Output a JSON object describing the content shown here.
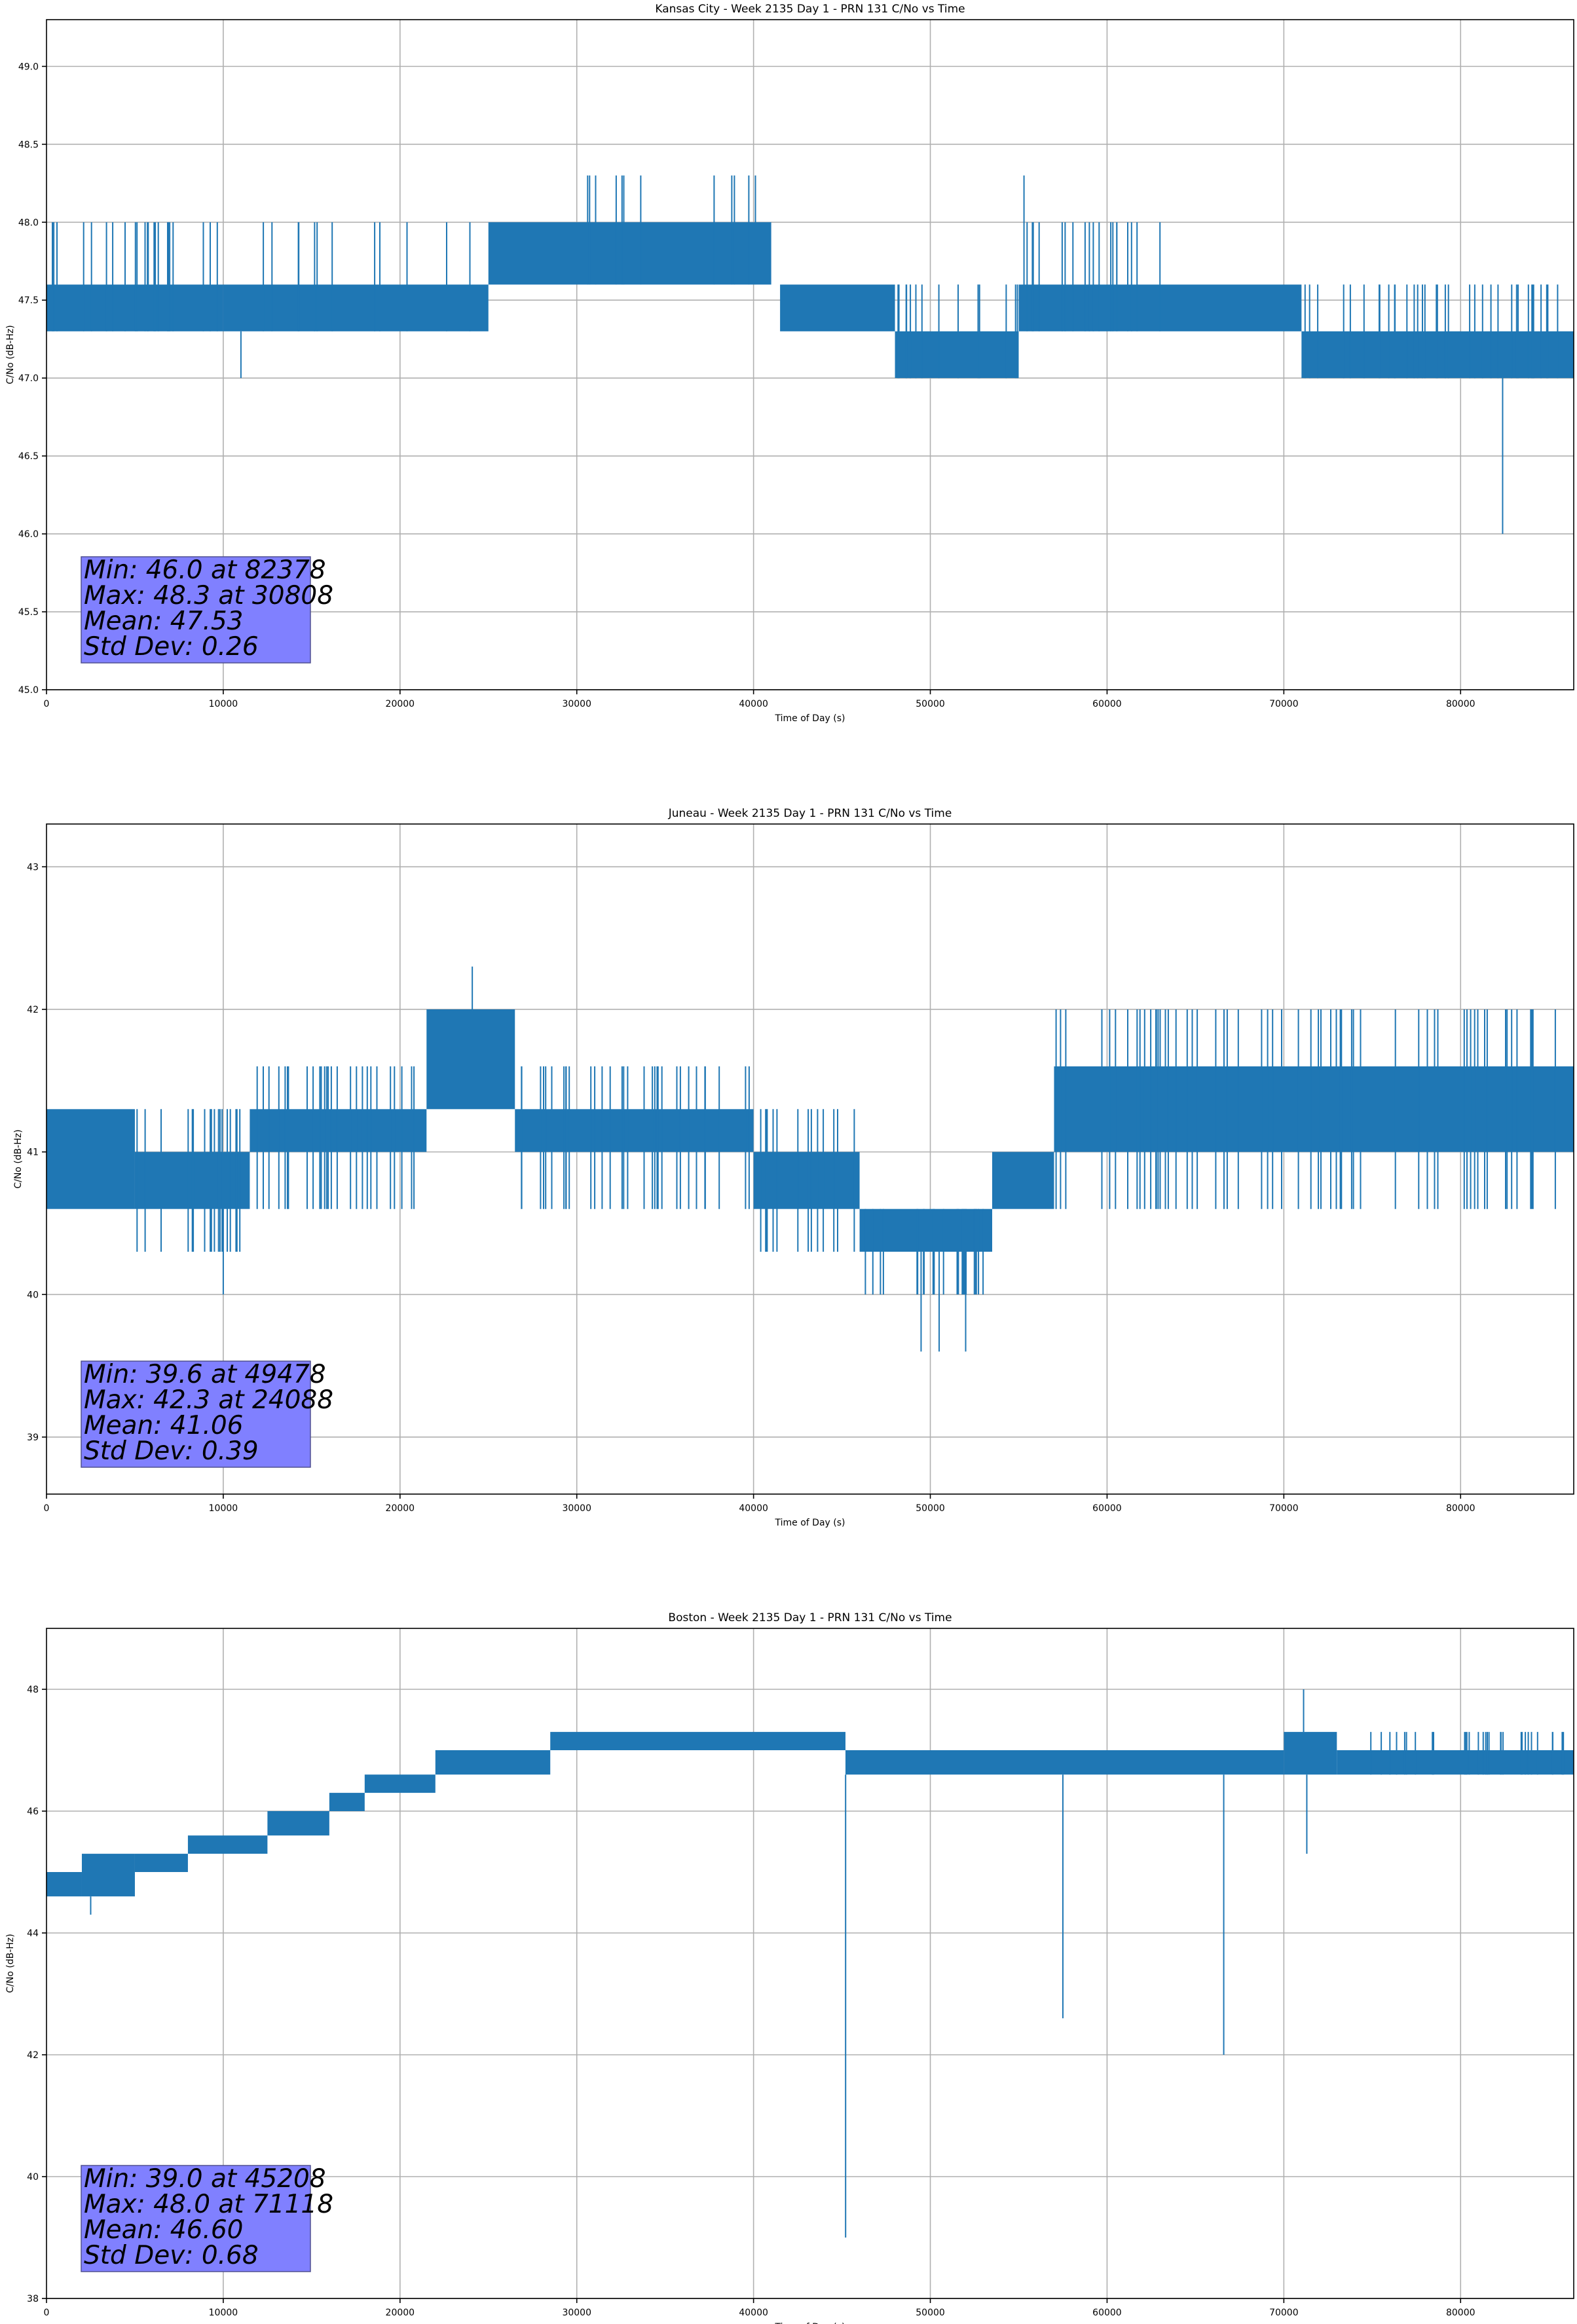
{
  "chart_data": [
    {
      "type": "line",
      "title": "Kansas City - Week 2135 Day 1 - PRN 131 C/No vs Time",
      "xlabel": "Time of Day (s)",
      "ylabel": "C/No (dB-Hz)",
      "xlim": [
        0,
        86400
      ],
      "ylim": [
        45.0,
        49.3
      ],
      "xticks": [
        0,
        10000,
        20000,
        30000,
        40000,
        50000,
        60000,
        70000,
        80000
      ],
      "yticks": [
        45.0,
        45.5,
        46.0,
        46.5,
        47.0,
        47.5,
        48.0,
        48.5,
        49.0
      ],
      "ytick_labels": [
        "45.0",
        "45.5",
        "46.0",
        "46.5",
        "47.0",
        "47.5",
        "48.0",
        "48.5",
        "49.0"
      ],
      "grid": true,
      "series_color": "#1f77b4",
      "series": [
        {
          "segments": [
            {
              "x0": 0,
              "x1": 10000,
              "lo": 47.3,
              "hi": 47.6,
              "dense": 1.0
            },
            {
              "x0": 0,
              "x1": 10000,
              "lo": 47.3,
              "hi": 48.0,
              "dense": 0.35
            },
            {
              "x0": 10000,
              "x1": 25000,
              "lo": 47.3,
              "hi": 47.6,
              "dense": 1.0
            },
            {
              "x0": 10000,
              "x1": 25000,
              "lo": 47.3,
              "hi": 48.0,
              "dense": 0.12
            },
            {
              "x0": 25000,
              "x1": 41000,
              "lo": 47.6,
              "hi": 48.0,
              "dense": 1.0
            },
            {
              "x0": 30500,
              "x1": 40500,
              "lo": 47.6,
              "hi": 48.3,
              "dense": 0.18
            },
            {
              "x0": 41500,
              "x1": 48000,
              "lo": 47.3,
              "hi": 47.6,
              "dense": 1.0
            },
            {
              "x0": 48000,
              "x1": 55000,
              "lo": 47.0,
              "hi": 47.3,
              "dense": 1.0
            },
            {
              "x0": 48000,
              "x1": 55000,
              "lo": 47.0,
              "hi": 47.6,
              "dense": 0.3
            },
            {
              "x0": 55000,
              "x1": 63000,
              "lo": 47.3,
              "hi": 47.6,
              "dense": 1.0
            },
            {
              "x0": 55000,
              "x1": 63000,
              "lo": 47.3,
              "hi": 48.0,
              "dense": 0.35
            },
            {
              "x0": 63000,
              "x1": 71000,
              "lo": 47.3,
              "hi": 47.6,
              "dense": 1.0
            },
            {
              "x0": 71000,
              "x1": 86400,
              "lo": 47.0,
              "hi": 47.3,
              "dense": 1.0
            },
            {
              "x0": 71000,
              "x1": 86400,
              "lo": 47.0,
              "hi": 47.6,
              "dense": 0.35
            }
          ],
          "spikes": [
            [
              11000,
              47.0
            ],
            [
              55300,
              48.3
            ],
            [
              82378,
              46.0
            ]
          ]
        }
      ],
      "stats_box": [
        "Min: 46.0 at 82378",
        "Max: 48.3 at 30808",
        "Mean: 47.53",
        "Std Dev: 0.26"
      ]
    },
    {
      "type": "line",
      "title": "Juneau - Week 2135 Day 1 - PRN 131 C/No vs Time",
      "xlabel": "Time of Day (s)",
      "ylabel": "C/No (dB-Hz)",
      "xlim": [
        0,
        86400
      ],
      "ylim": [
        38.6,
        43.3
      ],
      "xticks": [
        0,
        10000,
        20000,
        30000,
        40000,
        50000,
        60000,
        70000,
        80000
      ],
      "yticks": [
        39,
        40,
        41,
        42,
        43
      ],
      "ytick_labels": [
        "39",
        "40",
        "41",
        "42",
        "43"
      ],
      "grid": true,
      "series_color": "#1f77b4",
      "series": [
        {
          "segments": [
            {
              "x0": 0,
              "x1": 5000,
              "lo": 40.6,
              "hi": 41.3,
              "dense": 1.0
            },
            {
              "x0": 5000,
              "x1": 11500,
              "lo": 40.6,
              "hi": 41.0,
              "dense": 1.0
            },
            {
              "x0": 5000,
              "x1": 11500,
              "lo": 40.3,
              "hi": 41.3,
              "dense": 0.4
            },
            {
              "x0": 11500,
              "x1": 21500,
              "lo": 41.0,
              "hi": 41.3,
              "dense": 1.0
            },
            {
              "x0": 11500,
              "x1": 21500,
              "lo": 40.6,
              "hi": 41.6,
              "dense": 0.4
            },
            {
              "x0": 21500,
              "x1": 26500,
              "lo": 41.3,
              "hi": 42.0,
              "dense": 1.0
            },
            {
              "x0": 26500,
              "x1": 40000,
              "lo": 41.0,
              "hi": 41.3,
              "dense": 1.0
            },
            {
              "x0": 26500,
              "x1": 40000,
              "lo": 40.6,
              "hi": 41.6,
              "dense": 0.35
            },
            {
              "x0": 40000,
              "x1": 46000,
              "lo": 40.6,
              "hi": 41.0,
              "dense": 1.0
            },
            {
              "x0": 40000,
              "x1": 46000,
              "lo": 40.3,
              "hi": 41.3,
              "dense": 0.35
            },
            {
              "x0": 46000,
              "x1": 53500,
              "lo": 40.3,
              "hi": 40.6,
              "dense": 1.0
            },
            {
              "x0": 46000,
              "x1": 53500,
              "lo": 40.0,
              "hi": 40.6,
              "dense": 0.5
            },
            {
              "x0": 53500,
              "x1": 57000,
              "lo": 40.6,
              "hi": 41.0,
              "dense": 1.0
            },
            {
              "x0": 57000,
              "x1": 86400,
              "lo": 41.0,
              "hi": 41.6,
              "dense": 1.0
            },
            {
              "x0": 57000,
              "x1": 86400,
              "lo": 40.6,
              "hi": 42.0,
              "dense": 0.3
            }
          ],
          "spikes": [
            [
              10000,
              40.0
            ],
            [
              24088,
              42.3
            ],
            [
              49478,
              39.6
            ],
            [
              50500,
              39.6
            ],
            [
              52000,
              39.6
            ]
          ]
        }
      ],
      "stats_box": [
        "Min: 39.6 at 49478",
        "Max: 42.3 at 24088",
        "Mean: 41.06",
        "Std Dev: 0.39"
      ]
    },
    {
      "type": "line",
      "title": "Boston - Week 2135 Day 1 - PRN 131 C/No vs Time",
      "xlabel": "Time of Day (s)",
      "ylabel": "C/No (dB-Hz)",
      "xlim": [
        0,
        86400
      ],
      "ylim": [
        38,
        49
      ],
      "xticks": [
        0,
        10000,
        20000,
        30000,
        40000,
        50000,
        60000,
        70000,
        80000
      ],
      "yticks": [
        38,
        40,
        42,
        44,
        46,
        48
      ],
      "ytick_labels": [
        "38",
        "40",
        "42",
        "44",
        "46",
        "48"
      ],
      "grid": true,
      "series_color": "#1f77b4",
      "series": [
        {
          "segments": [
            {
              "x0": 0,
              "x1": 2000,
              "lo": 44.6,
              "hi": 45.0,
              "dense": 1.0
            },
            {
              "x0": 2000,
              "x1": 5000,
              "lo": 44.6,
              "hi": 45.3,
              "dense": 1.0
            },
            {
              "x0": 5000,
              "x1": 8000,
              "lo": 45.0,
              "hi": 45.3,
              "dense": 1.0
            },
            {
              "x0": 8000,
              "x1": 12500,
              "lo": 45.3,
              "hi": 45.6,
              "dense": 1.0
            },
            {
              "x0": 12500,
              "x1": 16000,
              "lo": 45.6,
              "hi": 46.0,
              "dense": 1.0
            },
            {
              "x0": 16000,
              "x1": 18000,
              "lo": 46.0,
              "hi": 46.3,
              "dense": 1.0
            },
            {
              "x0": 18000,
              "x1": 22000,
              "lo": 46.3,
              "hi": 46.6,
              "dense": 1.0
            },
            {
              "x0": 22000,
              "x1": 28500,
              "lo": 46.6,
              "hi": 47.0,
              "dense": 1.0
            },
            {
              "x0": 28500,
              "x1": 45200,
              "lo": 47.0,
              "hi": 47.3,
              "dense": 1.0
            },
            {
              "x0": 45200,
              "x1": 70000,
              "lo": 46.6,
              "hi": 47.0,
              "dense": 1.0
            },
            {
              "x0": 70000,
              "x1": 73000,
              "lo": 46.6,
              "hi": 47.3,
              "dense": 1.0
            },
            {
              "x0": 73000,
              "x1": 86400,
              "lo": 46.6,
              "hi": 47.0,
              "dense": 1.0
            },
            {
              "x0": 73000,
              "x1": 86400,
              "lo": 46.6,
              "hi": 47.3,
              "dense": 0.35
            }
          ],
          "spikes": [
            [
              45208,
              39.0
            ],
            [
              57500,
              42.6
            ],
            [
              66600,
              42.0
            ],
            [
              71118,
              48.0
            ],
            [
              71300,
              45.3
            ],
            [
              2500,
              44.3
            ]
          ]
        }
      ],
      "stats_box": [
        "Min: 39.0 at 45208",
        "Max: 48.0 at 71118",
        "Mean: 46.60",
        "Std Dev: 0.68"
      ]
    }
  ]
}
